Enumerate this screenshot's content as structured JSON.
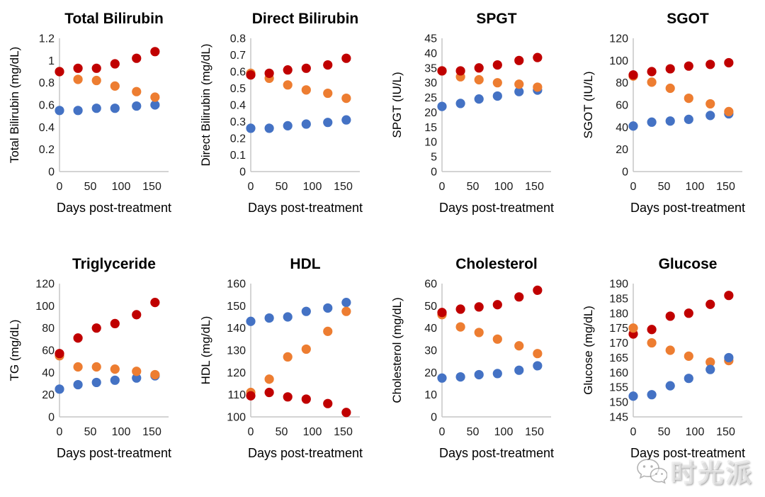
{
  "page": {
    "background": "#ffffff"
  },
  "shared": {
    "xlabel": "Days post-treatment",
    "x": [
      0,
      30,
      60,
      90,
      125,
      155
    ],
    "xticks": [
      0,
      50,
      100,
      150
    ],
    "xlim": [
      0,
      177
    ],
    "axis_color": "#c6c6c6",
    "colors": {
      "red": "#C00000",
      "orange": "#ED7D31",
      "blue": "#4472C4"
    }
  },
  "watermark": {
    "text": "时光派",
    "icon": "wechat-chat-bubbles-icon"
  },
  "chart_data": [
    {
      "type": "scatter",
      "title": "Total Bilirubin",
      "ylabel": "Total Bilirubin (mg/dL)",
      "xlabel": "Days post-treatment",
      "x": [
        0,
        30,
        60,
        90,
        125,
        155
      ],
      "ylim": [
        0,
        1.2
      ],
      "yticks": [
        "0",
        "0.2",
        "0.4",
        "0.6",
        "0.8",
        "1",
        "1.2"
      ],
      "series": [
        {
          "name": "blue",
          "color": "#4472C4",
          "values": [
            0.55,
            0.55,
            0.57,
            0.57,
            0.59,
            0.6
          ]
        },
        {
          "name": "orange",
          "color": "#ED7D31",
          "values": [
            0.9,
            0.83,
            0.82,
            0.77,
            0.72,
            0.67
          ]
        },
        {
          "name": "red",
          "color": "#C00000",
          "values": [
            0.9,
            0.93,
            0.93,
            0.97,
            1.02,
            1.08
          ]
        }
      ]
    },
    {
      "type": "scatter",
      "title": "Direct Bilirubin",
      "ylabel": "Direct Bilirubin (mg/dL)",
      "xlabel": "Days post-treatment",
      "x": [
        0,
        30,
        60,
        90,
        125,
        155
      ],
      "ylim": [
        0,
        0.8
      ],
      "yticks": [
        "0",
        "0.1",
        "0.2",
        "0.3",
        "0.4",
        "0.5",
        "0.6",
        "0.7",
        "0.8"
      ],
      "series": [
        {
          "name": "blue",
          "color": "#4472C4",
          "values": [
            0.26,
            0.26,
            0.275,
            0.285,
            0.295,
            0.31
          ]
        },
        {
          "name": "orange",
          "color": "#ED7D31",
          "values": [
            0.59,
            0.56,
            0.52,
            0.49,
            0.47,
            0.44
          ]
        },
        {
          "name": "red",
          "color": "#C00000",
          "values": [
            0.58,
            0.59,
            0.61,
            0.62,
            0.64,
            0.68
          ]
        }
      ]
    },
    {
      "type": "scatter",
      "title": "SPGT",
      "ylabel": "SPGT (IU/L)",
      "xlabel": "Days post-treatment",
      "x": [
        0,
        30,
        60,
        90,
        125,
        155
      ],
      "ylim": [
        0,
        45
      ],
      "yticks": [
        "0",
        "5",
        "10",
        "15",
        "20",
        "25",
        "30",
        "35",
        "40",
        "45"
      ],
      "series": [
        {
          "name": "blue",
          "color": "#4472C4",
          "values": [
            22,
            23,
            24.5,
            25.5,
            27,
            27.5
          ]
        },
        {
          "name": "orange",
          "color": "#ED7D31",
          "values": [
            34,
            32,
            31,
            30,
            29.5,
            28.5
          ]
        },
        {
          "name": "red",
          "color": "#C00000",
          "values": [
            34,
            34,
            35,
            36,
            37.5,
            38.5
          ]
        }
      ]
    },
    {
      "type": "scatter",
      "title": "SGOT",
      "ylabel": "SGOT (IU/L)",
      "xlabel": "Days post-treatment",
      "x": [
        0,
        30,
        60,
        90,
        125,
        155
      ],
      "ylim": [
        0,
        120
      ],
      "yticks": [
        "0",
        "20",
        "40",
        "60",
        "80",
        "100",
        "120"
      ],
      "series": [
        {
          "name": "blue",
          "color": "#4472C4",
          "values": [
            41,
            44.5,
            45.5,
            47,
            50.5,
            52
          ]
        },
        {
          "name": "orange",
          "color": "#ED7D31",
          "values": [
            86,
            80.5,
            75,
            66,
            61,
            54
          ]
        },
        {
          "name": "red",
          "color": "#C00000",
          "values": [
            87,
            90,
            92.5,
            95,
            96.5,
            98
          ]
        }
      ]
    },
    {
      "type": "scatter",
      "title": "Triglyceride",
      "ylabel": "TG (mg/dL)",
      "xlabel": "Days post-treatment",
      "x": [
        0,
        30,
        60,
        90,
        125,
        155
      ],
      "ylim": [
        0,
        120
      ],
      "yticks": [
        "0",
        "20",
        "40",
        "60",
        "80",
        "100",
        "120"
      ],
      "series": [
        {
          "name": "blue",
          "color": "#4472C4",
          "values": [
            25,
            29,
            31,
            33,
            35,
            37
          ]
        },
        {
          "name": "orange",
          "color": "#ED7D31",
          "values": [
            55,
            45,
            45,
            43,
            41,
            38
          ]
        },
        {
          "name": "red",
          "color": "#C00000",
          "values": [
            57,
            71,
            80,
            84,
            92,
            103
          ]
        }
      ]
    },
    {
      "type": "scatter",
      "title": "HDL",
      "ylabel": "HDL (mg/dL)",
      "xlabel": "Days post-treatment",
      "x": [
        0,
        30,
        60,
        90,
        125,
        155
      ],
      "ylim": [
        100,
        160
      ],
      "yticks": [
        "100",
        "110",
        "120",
        "130",
        "140",
        "150",
        "160"
      ],
      "series": [
        {
          "name": "blue",
          "color": "#4472C4",
          "values": [
            143,
            144.5,
            145,
            147.5,
            149,
            151.5
          ]
        },
        {
          "name": "orange",
          "color": "#ED7D31",
          "values": [
            111,
            117,
            127,
            130.5,
            138.5,
            147.5
          ]
        },
        {
          "name": "red",
          "color": "#C00000",
          "values": [
            109.5,
            111,
            109,
            108,
            106,
            102
          ]
        }
      ]
    },
    {
      "type": "scatter",
      "title": "Cholesterol",
      "ylabel": "Cholesterol (mg/dL)",
      "xlabel": "Days post-treatment",
      "x": [
        0,
        30,
        60,
        90,
        125,
        155
      ],
      "ylim": [
        0,
        60
      ],
      "yticks": [
        "0",
        "10",
        "20",
        "30",
        "40",
        "50",
        "60"
      ],
      "series": [
        {
          "name": "blue",
          "color": "#4472C4",
          "values": [
            17.5,
            18,
            19,
            19.5,
            21,
            23
          ]
        },
        {
          "name": "orange",
          "color": "#ED7D31",
          "values": [
            46,
            40.5,
            38,
            35,
            32,
            28.5
          ]
        },
        {
          "name": "red",
          "color": "#C00000",
          "values": [
            47,
            48.5,
            49.5,
            50.5,
            54,
            57
          ]
        }
      ]
    },
    {
      "type": "scatter",
      "title": "Glucose",
      "ylabel": "Glucose (mg/dL)",
      "xlabel": "Days post-treatment",
      "x": [
        0,
        30,
        60,
        90,
        125,
        155
      ],
      "ylim": [
        145,
        190
      ],
      "yticks": [
        "145",
        "150",
        "155",
        "160",
        "165",
        "170",
        "175",
        "180",
        "185",
        "190"
      ],
      "series": [
        {
          "name": "red",
          "color": "#C00000",
          "values": [
            173,
            174.5,
            179,
            180,
            183,
            186
          ]
        },
        {
          "name": "orange",
          "color": "#ED7D31",
          "values": [
            175,
            170,
            167.5,
            165.5,
            163.5,
            164
          ]
        },
        {
          "name": "blue",
          "color": "#4472C4",
          "values": [
            152,
            152.5,
            155.5,
            158,
            161,
            165
          ]
        }
      ]
    }
  ]
}
